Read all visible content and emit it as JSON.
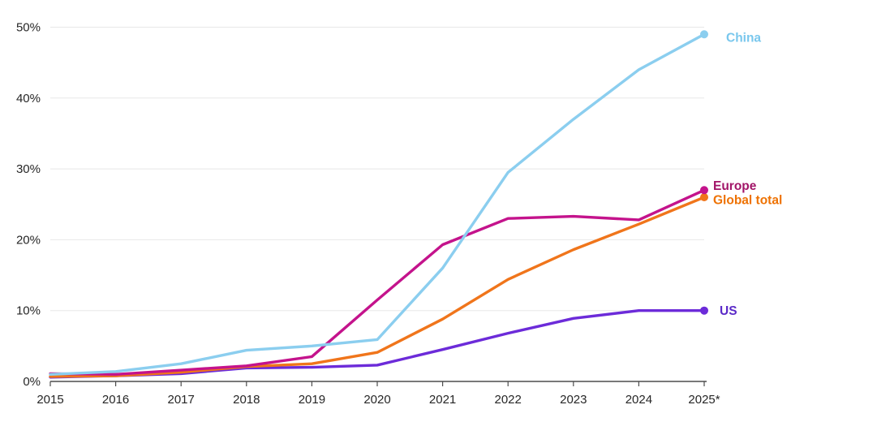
{
  "chart_data": {
    "type": "line",
    "categories": [
      "2015",
      "2016",
      "2017",
      "2018",
      "2019",
      "2020",
      "2021",
      "2022",
      "2023",
      "2024",
      "2025*"
    ],
    "y_ticks": [
      0,
      10,
      20,
      30,
      40,
      50
    ],
    "y_tick_labels": [
      "0%",
      "10%",
      "20%",
      "30%",
      "40%",
      "50%"
    ],
    "ylim": [
      0,
      52
    ],
    "grid": "horizontal",
    "legend_position": "right-end-labels",
    "line_width": 3.4,
    "end_marker_radius": 5,
    "axis_color": "#4d4d4d",
    "grid_color": "#e8e8e8",
    "tick_label_color": "#262626",
    "series": [
      {
        "name": "China",
        "color": "#8BCEEF",
        "label_color": "#79C7ED",
        "values": [
          1.0,
          1.4,
          2.5,
          4.4,
          5.0,
          5.9,
          16.0,
          29.5,
          37.0,
          44.0,
          49.0
        ],
        "label_dx": 27,
        "label_dy": 4
      },
      {
        "name": "Europe",
        "color": "#C4138C",
        "label_color": "#A21568",
        "values": [
          1.1,
          1.0,
          1.6,
          2.2,
          3.5,
          11.5,
          19.3,
          23.0,
          23.3,
          22.8,
          27.0
        ],
        "label_dx": 11,
        "label_dy": -6
      },
      {
        "name": "Global total",
        "color": "#F0751B",
        "label_color": "#EE7203",
        "values": [
          0.7,
          0.8,
          1.3,
          2.1,
          2.5,
          4.1,
          8.8,
          14.4,
          18.6,
          22.2,
          26.0
        ],
        "label_dx": 11,
        "label_dy": 3
      },
      {
        "name": "US",
        "color": "#6C2BD9",
        "label_color": "#5B2AC8",
        "values": [
          0.6,
          0.8,
          1.1,
          1.9,
          2.0,
          2.3,
          4.5,
          6.8,
          8.9,
          10.0,
          10.0
        ],
        "label_dx": 19,
        "label_dy": 0
      }
    ]
  }
}
